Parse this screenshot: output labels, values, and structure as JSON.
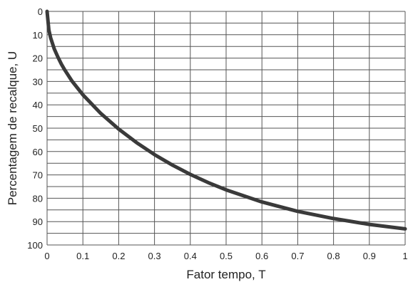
{
  "chart_data": {
    "type": "line",
    "xlabel": "Fator tempo, T",
    "ylabel": "Percentagem de recalque, U",
    "xlim": [
      0,
      1
    ],
    "ylim": [
      0,
      100
    ],
    "y_inverted": true,
    "grid": true,
    "x_ticks": [
      "0",
      "0.1",
      "0.2",
      "0.3",
      "0.4",
      "0.5",
      "0.6",
      "0.7",
      "0.8",
      "0.9",
      "1"
    ],
    "y_ticks": [
      "0",
      "10",
      "20",
      "30",
      "40",
      "50",
      "60",
      "70",
      "80",
      "90",
      "100"
    ],
    "series": [
      {
        "x": [
          0,
          0.005,
          0.01,
          0.02,
          0.03,
          0.04,
          0.05,
          0.07,
          0.1,
          0.15,
          0.2,
          0.25,
          0.3,
          0.35,
          0.4,
          0.45,
          0.5,
          0.6,
          0.7,
          0.8,
          0.9,
          1.0
        ],
        "y": [
          0,
          8,
          11.3,
          16,
          19.5,
          22.6,
          25.2,
          29.9,
          35.7,
          43.7,
          50.4,
          56.2,
          61.3,
          65.8,
          69.8,
          73.3,
          76.4,
          81.6,
          85.6,
          88.7,
          91.2,
          93.1
        ]
      }
    ]
  }
}
